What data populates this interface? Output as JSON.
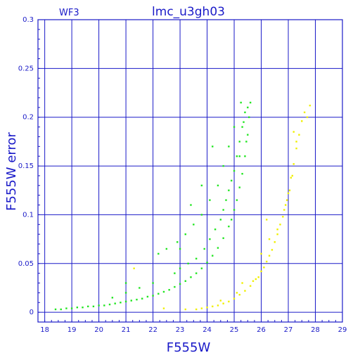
{
  "chart_data": {
    "type": "scatter",
    "title": "lmc_u3gh03",
    "chip_label": "WF3",
    "xlabel": "F555W",
    "ylabel": "F555W error",
    "xlim": [
      17.75,
      29
    ],
    "ylim": [
      -0.01,
      0.3
    ],
    "x_ticks": [
      "18",
      "19",
      "20",
      "21",
      "22",
      "23",
      "24",
      "25",
      "26",
      "27",
      "28",
      "29"
    ],
    "y_ticks": [
      "0",
      "0.05",
      "0.1",
      "0.15",
      "0.2",
      "0.25",
      "0.3"
    ],
    "grid": true,
    "colors": {
      "axis": "#1a1ac8",
      "grid": "#1a1ac8",
      "green": "#22e622",
      "yellow": "#f0f000"
    },
    "series": [
      {
        "color": "green",
        "points": [
          [
            18.4,
            0.003
          ],
          [
            18.6,
            0.003
          ],
          [
            18.8,
            0.004
          ],
          [
            19.0,
            0.004
          ],
          [
            19.2,
            0.005
          ],
          [
            19.4,
            0.005
          ],
          [
            19.6,
            0.006
          ],
          [
            19.8,
            0.006
          ],
          [
            20.0,
            0.007
          ],
          [
            20.2,
            0.007
          ],
          [
            20.4,
            0.008
          ],
          [
            20.6,
            0.009
          ],
          [
            20.8,
            0.01
          ],
          [
            21.0,
            0.011
          ],
          [
            21.2,
            0.012
          ],
          [
            21.4,
            0.013
          ],
          [
            21.6,
            0.014
          ],
          [
            21.8,
            0.016
          ],
          [
            22.0,
            0.017
          ],
          [
            22.2,
            0.019
          ],
          [
            22.4,
            0.021
          ],
          [
            22.6,
            0.023
          ],
          [
            22.8,
            0.026
          ],
          [
            23.0,
            0.029
          ],
          [
            23.2,
            0.032
          ],
          [
            23.4,
            0.036
          ],
          [
            23.6,
            0.04
          ],
          [
            23.8,
            0.045
          ],
          [
            24.0,
            0.051
          ],
          [
            24.2,
            0.058
          ],
          [
            24.4,
            0.066
          ],
          [
            24.6,
            0.076
          ],
          [
            24.8,
            0.088
          ],
          [
            24.9,
            0.095
          ],
          [
            25.0,
            0.105
          ],
          [
            25.1,
            0.115
          ],
          [
            25.2,
            0.128
          ],
          [
            25.3,
            0.142
          ],
          [
            25.4,
            0.16
          ],
          [
            25.5,
            0.182
          ],
          [
            25.55,
            0.2
          ],
          [
            25.6,
            0.215
          ],
          [
            22.8,
            0.04
          ],
          [
            23.0,
            0.045
          ],
          [
            23.3,
            0.05
          ],
          [
            23.6,
            0.055
          ],
          [
            23.9,
            0.065
          ],
          [
            24.1,
            0.075
          ],
          [
            24.3,
            0.085
          ],
          [
            24.5,
            0.095
          ],
          [
            24.6,
            0.105
          ],
          [
            24.7,
            0.115
          ],
          [
            24.8,
            0.125
          ],
          [
            24.9,
            0.135
          ],
          [
            25.0,
            0.145
          ],
          [
            25.1,
            0.16
          ],
          [
            25.2,
            0.175
          ],
          [
            25.3,
            0.19
          ],
          [
            25.4,
            0.205
          ],
          [
            25.25,
            0.215
          ],
          [
            22.2,
            0.06
          ],
          [
            22.5,
            0.065
          ],
          [
            22.9,
            0.072
          ],
          [
            23.2,
            0.08
          ],
          [
            23.5,
            0.09
          ],
          [
            23.8,
            0.1
          ],
          [
            24.1,
            0.115
          ],
          [
            24.4,
            0.13
          ],
          [
            24.6,
            0.15
          ],
          [
            24.8,
            0.17
          ],
          [
            25.0,
            0.19
          ],
          [
            24.2,
            0.17
          ],
          [
            23.8,
            0.13
          ],
          [
            23.4,
            0.11
          ],
          [
            23.0,
            0.065
          ],
          [
            21.0,
            0.03
          ],
          [
            21.5,
            0.025
          ],
          [
            22.0,
            0.03
          ],
          [
            20.5,
            0.015
          ],
          [
            21.0,
            0.02
          ],
          [
            25.2,
            0.16
          ],
          [
            25.5,
            0.21
          ],
          [
            25.35,
            0.195
          ],
          [
            25.45,
            0.175
          ]
        ]
      },
      {
        "color": "yellow",
        "points": [
          [
            21.3,
            0.045
          ],
          [
            22.4,
            0.004
          ],
          [
            23.2,
            0.003
          ],
          [
            23.6,
            0.003
          ],
          [
            23.8,
            0.004
          ],
          [
            24.0,
            0.005
          ],
          [
            24.2,
            0.006
          ],
          [
            24.4,
            0.007
          ],
          [
            24.6,
            0.009
          ],
          [
            24.8,
            0.011
          ],
          [
            25.0,
            0.014
          ],
          [
            25.2,
            0.018
          ],
          [
            25.4,
            0.022
          ],
          [
            25.6,
            0.027
          ],
          [
            25.8,
            0.034
          ],
          [
            26.0,
            0.042
          ],
          [
            26.2,
            0.052
          ],
          [
            26.4,
            0.064
          ],
          [
            26.6,
            0.08
          ],
          [
            26.8,
            0.098
          ],
          [
            26.9,
            0.11
          ],
          [
            27.0,
            0.122
          ],
          [
            27.1,
            0.138
          ],
          [
            27.2,
            0.152
          ],
          [
            27.3,
            0.168
          ],
          [
            27.4,
            0.182
          ],
          [
            27.5,
            0.196
          ],
          [
            27.6,
            0.205
          ],
          [
            27.8,
            0.212
          ],
          [
            25.9,
            0.036
          ],
          [
            26.1,
            0.046
          ],
          [
            26.3,
            0.058
          ],
          [
            26.5,
            0.072
          ],
          [
            26.7,
            0.09
          ],
          [
            26.85,
            0.105
          ],
          [
            27.05,
            0.125
          ],
          [
            27.15,
            0.14
          ],
          [
            26.0,
            0.06
          ],
          [
            26.3,
            0.075
          ],
          [
            27.2,
            0.185
          ],
          [
            27.7,
            0.2
          ],
          [
            24.5,
            0.012
          ],
          [
            25.1,
            0.02
          ],
          [
            25.7,
            0.032
          ],
          [
            26.6,
            0.085
          ],
          [
            26.95,
            0.115
          ],
          [
            27.3,
            0.175
          ],
          [
            25.3,
            0.03
          ],
          [
            26.2,
            0.095
          ]
        ]
      }
    ]
  }
}
